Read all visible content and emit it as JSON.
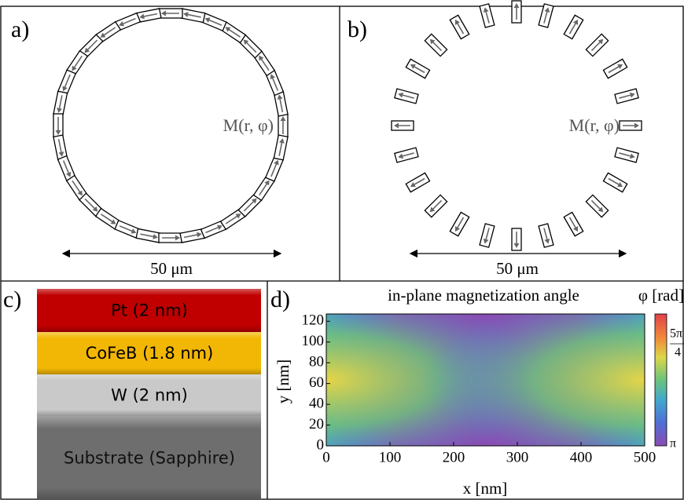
{
  "panels": {
    "a": {
      "label": "a)",
      "vector_label": "M(r, φ)",
      "scale": "50 μm"
    },
    "b": {
      "label": "b)",
      "vector_label": "M(r, φ)",
      "scale": "50 μm"
    },
    "c": {
      "label": "c)",
      "layers": [
        "Pt (2 nm)",
        "CoFeB (1.8 nm)",
        "W (2 nm)",
        "Substrate (Sapphire)"
      ]
    },
    "d": {
      "label": "d)",
      "title": "in-plane magnetization angle",
      "xlabel": "x [nm]",
      "ylabel": "y [nm]",
      "xlim": [
        0,
        500
      ],
      "ylim": [
        0,
        127
      ],
      "xticks": [
        0,
        100,
        200,
        300,
        400,
        500
      ],
      "yticks": [
        0,
        20,
        40,
        60,
        80,
        100,
        120
      ],
      "colorbar_label": "φ [rad]",
      "colorbar_ticks": [
        {
          "numerator": "5π",
          "denominator": "4"
        },
        "π"
      ]
    }
  }
}
